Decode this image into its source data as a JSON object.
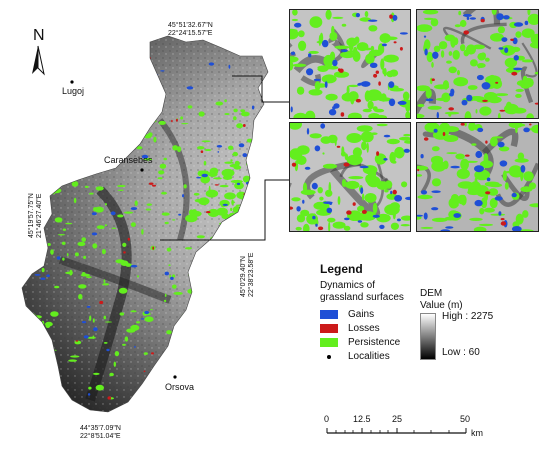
{
  "coordinates": {
    "top": [
      "45°51'32.67\"N",
      "22°24'15.57\"E"
    ],
    "left": [
      "45°19'57.75\"N",
      "21°46'27.40\"E"
    ],
    "right": [
      "45°0'29.40\"N",
      "22°38'23.58\"E"
    ],
    "bottom": [
      "44°35'7.09\"N",
      "22°8'51.04\"E"
    ]
  },
  "localities": [
    "Lugoj",
    "Caransebes",
    "Orsova"
  ],
  "north_arrow": "N",
  "legend": {
    "title": "Legend",
    "subtitle_line1": "Dynamics of",
    "subtitle_line2": "grassland surfaces",
    "items": [
      {
        "label": "Gains",
        "color": "#1f4fd6"
      },
      {
        "label": "Losses",
        "color": "#cc1a1a"
      },
      {
        "label": "Persistence",
        "color": "#63ee1e"
      }
    ],
    "localities_label": "Localities",
    "dem_title": "DEM",
    "dem_subtitle": "Value (m)",
    "dem_high": "High : 2275",
    "dem_low": "Low : 60"
  },
  "scale_bar": {
    "labels": [
      "0",
      "12.5",
      "25",
      "50"
    ],
    "unit": "km"
  },
  "colors": {
    "gains": "#1f4fd6",
    "losses": "#cc1a1a",
    "persistence": "#63ee1e",
    "dem_low": "#000000",
    "dem_high": "#ffffff"
  }
}
